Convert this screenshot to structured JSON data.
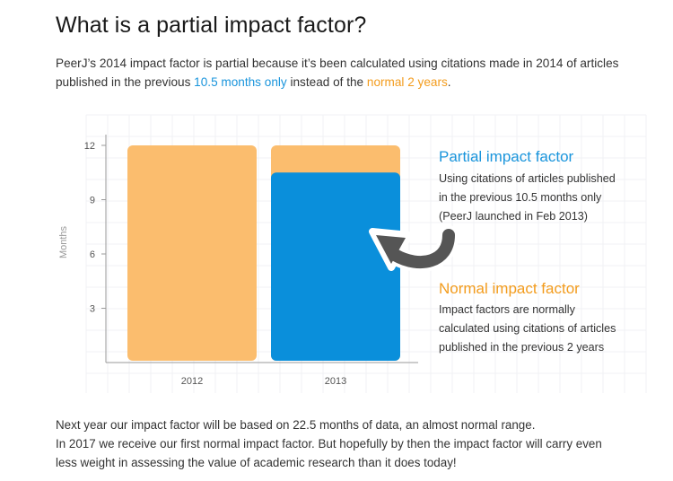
{
  "title": "What is a partial impact factor?",
  "intro": {
    "part1": "PeerJ’s 2014 impact factor is partial because it’s been calculated using citations made in 2014 of articles published in the previous ",
    "highlight_blue": "10.5 months only",
    "part2": " instead of the ",
    "highlight_orange": "normal 2 years",
    "part3": "."
  },
  "colors": {
    "blue": "#0a8fdb",
    "orange": "#fbbd6e",
    "blue_text": "#1a95dc",
    "orange_text": "#f39c1d",
    "arrow": "#555555"
  },
  "chart_data": {
    "type": "bar",
    "categories": [
      "2012",
      "2013"
    ],
    "series": [
      {
        "values": [
          12,
          12
        ],
        "color": "#fbbd6e"
      },
      {
        "values": [
          null,
          10.5
        ],
        "color": "#0a8fdb"
      }
    ],
    "overlay": true,
    "ylabel": "Months",
    "xlabel": "",
    "ylim": [
      0,
      12
    ],
    "yticks": [
      3,
      6,
      9,
      12
    ],
    "grid": true
  },
  "annotations": {
    "partial": {
      "heading": "Partial impact factor",
      "lines": [
        "Using citations of articles published",
        "in the previous 10.5 months only",
        "(PeerJ launched in Feb 2013)"
      ]
    },
    "normal": {
      "heading": "Normal impact factor",
      "lines": [
        "Impact factors are normally",
        "calculated using citations of articles",
        "published in the previous 2 years"
      ]
    },
    "arrow_icon": "curved-arrow-left-icon"
  },
  "footer": {
    "line1": "Next year our impact factor will be based on 22.5 months of data, an almost normal range.",
    "line2": "In 2017 we receive our first normal impact factor. But hopefully by then the impact factor will carry even",
    "line3": "less weight in assessing the value of academic research than it does today!"
  }
}
